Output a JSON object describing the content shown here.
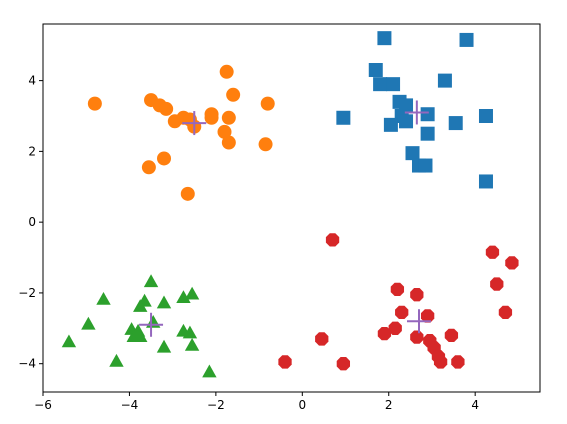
{
  "chart_data": {
    "type": "scatter",
    "title": "",
    "xlabel": "",
    "ylabel": "",
    "xlim": [
      -6,
      5.5
    ],
    "ylim": [
      -4.8,
      5.6
    ],
    "x_ticks": [
      -6,
      -4,
      -2,
      0,
      2,
      4
    ],
    "y_ticks": [
      -4,
      -2,
      0,
      2,
      4
    ],
    "x_tick_labels": [
      "−6",
      "−4",
      "−2",
      "0",
      "2",
      "4"
    ],
    "y_tick_labels": [
      "−4",
      "−2",
      "0",
      "2",
      "4"
    ],
    "grid": false,
    "legend": "none",
    "series": [
      {
        "marker": "square",
        "color": "#1f77b4",
        "points": [
          [
            1.9,
            5.2
          ],
          [
            3.8,
            5.15
          ],
          [
            1.7,
            4.3
          ],
          [
            1.8,
            3.9
          ],
          [
            2.1,
            3.9
          ],
          [
            3.3,
            4.0
          ],
          [
            2.25,
            3.4
          ],
          [
            2.4,
            3.3
          ],
          [
            2.3,
            3.0
          ],
          [
            2.9,
            3.05
          ],
          [
            0.95,
            2.95
          ],
          [
            2.05,
            2.75
          ],
          [
            2.4,
            2.85
          ],
          [
            3.55,
            2.8
          ],
          [
            4.25,
            3.0
          ],
          [
            2.9,
            2.5
          ],
          [
            2.55,
            1.95
          ],
          [
            2.7,
            1.6
          ],
          [
            2.85,
            1.6
          ],
          [
            4.25,
            1.15
          ]
        ]
      },
      {
        "marker": "circle",
        "color": "#ff7f0e",
        "points": [
          [
            -4.8,
            3.35
          ],
          [
            -3.5,
            3.45
          ],
          [
            -3.3,
            3.3
          ],
          [
            -3.15,
            3.2
          ],
          [
            -2.95,
            2.85
          ],
          [
            -2.75,
            2.95
          ],
          [
            -2.6,
            2.9
          ],
          [
            -2.5,
            2.7
          ],
          [
            -2.1,
            3.05
          ],
          [
            -2.1,
            2.95
          ],
          [
            -1.75,
            4.25
          ],
          [
            -1.6,
            3.6
          ],
          [
            -1.7,
            2.95
          ],
          [
            -1.8,
            2.55
          ],
          [
            -1.7,
            2.25
          ],
          [
            -0.8,
            3.35
          ],
          [
            -0.85,
            2.2
          ],
          [
            -3.2,
            1.8
          ],
          [
            -3.55,
            1.55
          ],
          [
            -2.65,
            0.8
          ]
        ]
      },
      {
        "marker": "triangle",
        "color": "#2ca02c",
        "points": [
          [
            -3.5,
            -1.7
          ],
          [
            -4.6,
            -2.2
          ],
          [
            -3.65,
            -2.25
          ],
          [
            -2.75,
            -2.15
          ],
          [
            -2.55,
            -2.05
          ],
          [
            -3.2,
            -2.3
          ],
          [
            -3.75,
            -2.4
          ],
          [
            -4.95,
            -2.9
          ],
          [
            -3.45,
            -2.85
          ],
          [
            -3.95,
            -3.05
          ],
          [
            -3.9,
            -3.25
          ],
          [
            -3.75,
            -3.25
          ],
          [
            -2.75,
            -3.1
          ],
          [
            -2.6,
            -3.15
          ],
          [
            -5.4,
            -3.4
          ],
          [
            -3.2,
            -3.55
          ],
          [
            -2.55,
            -3.5
          ],
          [
            -4.3,
            -3.95
          ],
          [
            -2.15,
            -4.25
          ],
          [
            -3.8,
            -3.1
          ]
        ]
      },
      {
        "marker": "octagon",
        "color": "#d62728",
        "points": [
          [
            0.7,
            -0.5
          ],
          [
            2.2,
            -1.9
          ],
          [
            2.65,
            -2.05
          ],
          [
            4.4,
            -0.85
          ],
          [
            4.85,
            -1.15
          ],
          [
            4.5,
            -1.75
          ],
          [
            4.7,
            -2.55
          ],
          [
            2.3,
            -2.55
          ],
          [
            2.9,
            -2.65
          ],
          [
            2.15,
            -3.0
          ],
          [
            1.9,
            -3.15
          ],
          [
            2.65,
            -3.25
          ],
          [
            2.95,
            -3.35
          ],
          [
            3.05,
            -3.55
          ],
          [
            3.45,
            -3.2
          ],
          [
            3.15,
            -3.8
          ],
          [
            3.2,
            -3.95
          ],
          [
            3.6,
            -3.95
          ],
          [
            0.45,
            -3.3
          ],
          [
            0.95,
            -4.0
          ],
          [
            -0.4,
            -3.95
          ]
        ]
      }
    ],
    "centers": {
      "marker": "plus",
      "color": "#9467bd",
      "points": [
        [
          2.65,
          3.1
        ],
        [
          -2.5,
          2.8
        ],
        [
          -3.5,
          -2.9
        ],
        [
          2.7,
          -2.8
        ]
      ]
    }
  }
}
